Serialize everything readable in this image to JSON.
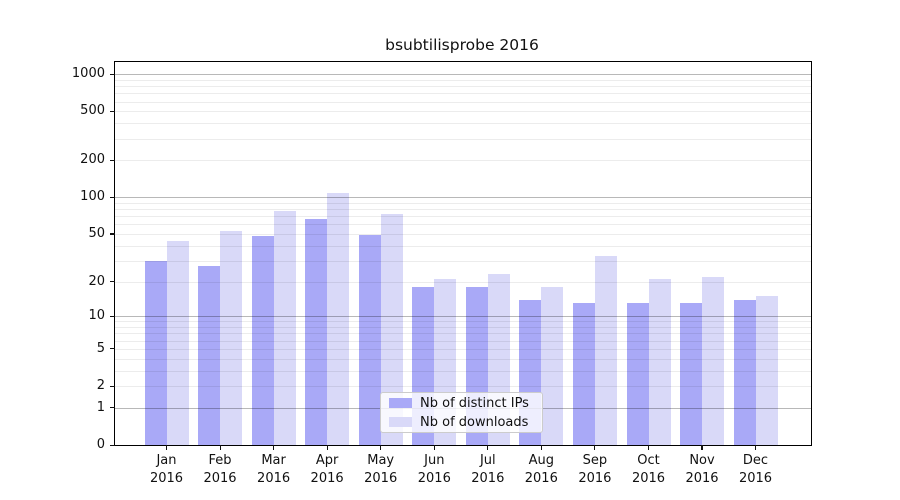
{
  "title": "bsubtilisprobe 2016",
  "legend": {
    "items": [
      {
        "label": "Nb of distinct IPs",
        "color": "#a9a9f7"
      },
      {
        "label": "Nb of downloads",
        "color": "#d9d9f8"
      }
    ]
  },
  "chart_data": {
    "type": "bar",
    "title": "bsubtilisprobe 2016",
    "categories": [
      "Jan 2016",
      "Feb 2016",
      "Mar 2016",
      "Apr 2016",
      "May 2016",
      "Jun 2016",
      "Jul 2016",
      "Aug 2016",
      "Sep 2016",
      "Oct 2016",
      "Nov 2016",
      "Dec 2016"
    ],
    "series": [
      {
        "name": "Nb of distinct IPs",
        "color": "#a9a9f7",
        "values": [
          30,
          27,
          48,
          66,
          49,
          18,
          18,
          14,
          13,
          13,
          13,
          14
        ]
      },
      {
        "name": "Nb of downloads",
        "color": "#d9d9f8",
        "values": [
          44,
          53,
          78,
          108,
          73,
          21,
          23,
          18,
          33,
          21,
          22,
          15
        ]
      }
    ],
    "xlabel": "",
    "ylabel": "",
    "y_scale": "log10(1+y)",
    "ylim": [
      0,
      1260
    ],
    "y_ticks": [
      0,
      1,
      2,
      5,
      10,
      20,
      50,
      100,
      200,
      500,
      1000
    ],
    "y_major_gridlines": [
      1,
      10,
      100,
      1000
    ],
    "y_minor_gridlines": [
      2,
      3,
      4,
      5,
      6,
      7,
      8,
      9,
      20,
      30,
      40,
      50,
      60,
      70,
      80,
      90,
      200,
      300,
      400,
      500,
      600,
      700,
      800,
      900
    ],
    "grid": true,
    "legend_position": "lower center inside"
  }
}
